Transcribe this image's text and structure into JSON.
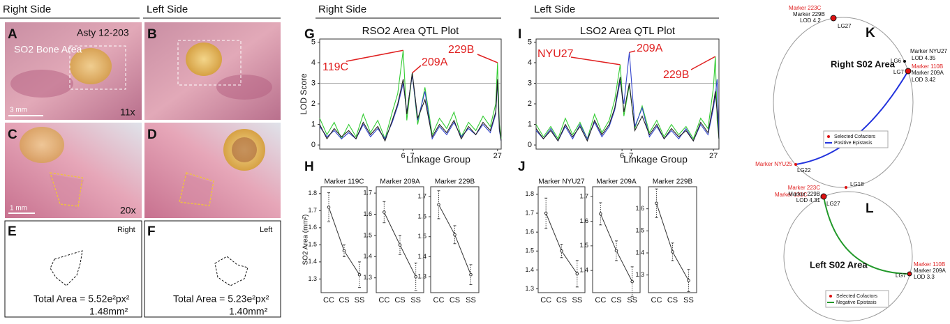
{
  "headers": {
    "photo_right": "Right Side",
    "photo_left": "Left Side",
    "qtl_right": "Right Side",
    "qtl_left": "Left Side"
  },
  "photos": {
    "A": {
      "label": "A",
      "strain": "Asty 12-203",
      "region": "SO2 Bone Area",
      "scale": "3 mm",
      "magnification": "11x"
    },
    "B": {
      "label": "B"
    },
    "C": {
      "label": "C",
      "scale": "1 mm",
      "magnification": "20x"
    },
    "D": {
      "label": "D"
    },
    "E": {
      "label": "E",
      "side": "Right",
      "total": "Total Area = 5.52e²px²",
      "mm": "1.48mm²"
    },
    "F": {
      "label": "F",
      "side": "Left",
      "total": "Total Area = 5.23e²px²",
      "mm": "1.40mm²"
    }
  },
  "chart_data": [
    {
      "type": "line",
      "panel": "G",
      "title": "RSO2 Area QTL Plot",
      "y_label": "LOD Score",
      "x_label": "Linkage Group",
      "xlim": [
        0,
        100
      ],
      "ylim": [
        -0.2,
        5.15
      ],
      "yticks": [
        0,
        1,
        2,
        3,
        4,
        5
      ],
      "xticks": [
        {
          "value": 46,
          "label": "6"
        },
        {
          "value": 51,
          "label": "7"
        },
        {
          "value": 98,
          "label": "27"
        }
      ],
      "threshold": 3,
      "x": [
        0,
        4,
        8,
        12,
        16,
        20,
        24,
        28,
        32,
        36,
        40,
        43,
        46,
        48,
        51,
        54,
        58,
        62,
        66,
        70,
        74,
        78,
        82,
        86,
        90,
        94,
        97,
        98,
        99,
        100
      ],
      "series": [
        {
          "color": "#33cc33",
          "values": [
            1.3,
            0.5,
            1.1,
            0.3,
            1.0,
            0.4,
            1.5,
            0.6,
            1.2,
            0.3,
            1.6,
            2.5,
            4.6,
            1.2,
            3.5,
            1.0,
            2.8,
            0.5,
            1.3,
            0.8,
            1.6,
            0.4,
            1.1,
            0.7,
            1.4,
            0.9,
            2.0,
            4.0,
            1.0,
            0.3
          ]
        },
        {
          "color": "#3344cc",
          "values": [
            0.9,
            0.4,
            0.7,
            0.3,
            0.6,
            0.3,
            1.0,
            0.4,
            0.8,
            0.3,
            1.1,
            1.9,
            3.0,
            1.6,
            3.4,
            1.2,
            2.6,
            0.3,
            0.9,
            0.5,
            1.1,
            0.4,
            0.8,
            0.5,
            1.0,
            0.6,
            1.5,
            3.1,
            0.7,
            0.2
          ]
        },
        {
          "color": "#222222",
          "values": [
            1.0,
            0.3,
            0.8,
            0.4,
            0.7,
            0.3,
            1.1,
            0.5,
            0.9,
            0.2,
            1.2,
            2.0,
            3.2,
            1.5,
            3.5,
            1.3,
            2.2,
            0.4,
            1.0,
            0.6,
            1.2,
            0.3,
            0.9,
            0.5,
            1.1,
            0.7,
            1.6,
            3.2,
            0.8,
            0.2
          ]
        }
      ],
      "annotations": [
        "119C",
        "209A",
        "229B"
      ]
    },
    {
      "type": "line",
      "panel": "I",
      "title": "LSO2 Area QTL Plot",
      "x_label": "Linkage Group",
      "xlim": [
        0,
        100
      ],
      "ylim": [
        -0.2,
        5.15
      ],
      "yticks": [
        0,
        1,
        2,
        3,
        4,
        5
      ],
      "xticks": [
        {
          "value": 47,
          "label": "6"
        },
        {
          "value": 52,
          "label": "7"
        },
        {
          "value": 97,
          "label": "27"
        }
      ],
      "threshold": 3,
      "x": [
        0,
        4,
        8,
        12,
        16,
        20,
        24,
        28,
        32,
        36,
        40,
        43,
        46,
        48,
        51,
        54,
        58,
        62,
        66,
        70,
        74,
        78,
        82,
        86,
        90,
        94,
        97,
        98,
        99,
        100
      ],
      "series": [
        {
          "color": "#33cc33",
          "values": [
            1.0,
            0.4,
            0.9,
            0.3,
            1.3,
            0.5,
            1.1,
            0.3,
            1.5,
            0.6,
            1.2,
            2.2,
            3.9,
            1.4,
            2.9,
            0.8,
            1.9,
            0.6,
            1.2,
            0.4,
            1.0,
            0.5,
            0.9,
            0.3,
            1.3,
            0.8,
            2.8,
            4.3,
            1.2,
            0.3
          ]
        },
        {
          "color": "#3344cc",
          "values": [
            0.7,
            0.3,
            0.8,
            0.2,
            0.9,
            0.3,
            1.0,
            0.3,
            1.1,
            0.4,
            0.9,
            1.7,
            3.1,
            2.0,
            4.5,
            0.9,
            1.8,
            0.4,
            0.9,
            0.3,
            0.7,
            0.3,
            0.8,
            0.2,
            1.0,
            0.5,
            1.8,
            2.4,
            3.2,
            0.3
          ]
        },
        {
          "color": "#222222",
          "values": [
            0.8,
            0.3,
            0.7,
            0.2,
            1.0,
            0.4,
            0.9,
            0.2,
            1.2,
            0.5,
            1.0,
            1.8,
            3.3,
            1.6,
            3.0,
            0.7,
            1.4,
            0.5,
            1.0,
            0.3,
            0.8,
            0.4,
            0.7,
            0.2,
            1.1,
            0.6,
            2.0,
            2.6,
            1.6,
            0.3
          ]
        }
      ],
      "annotations": [
        "NYU27",
        "209A",
        "229B"
      ]
    },
    {
      "type": "effect",
      "panel": "H",
      "title": "Marker 119C",
      "y_label": "SO2 Area (mm²)",
      "categories": [
        "CC",
        "CS",
        "SS"
      ],
      "values": [
        1.72,
        1.465,
        1.325
      ],
      "errors": [
        0.085,
        0.035,
        0.075
      ],
      "ylim": [
        1.22,
        1.84
      ],
      "yticks": [
        1.3,
        1.4,
        1.5,
        1.6,
        1.7,
        1.8
      ]
    },
    {
      "type": "effect",
      "title": "Marker 209A",
      "categories": [
        "CC",
        "CS",
        "SS"
      ],
      "values": [
        1.61,
        1.455,
        1.305
      ],
      "errors": [
        0.05,
        0.045,
        0.065
      ],
      "ylim": [
        1.23,
        1.73
      ],
      "yticks": [
        1.3,
        1.4,
        1.5,
        1.6,
        1.7
      ]
    },
    {
      "type": "effect",
      "title": "Marker 229B",
      "categories": [
        "CC",
        "CS",
        "SS"
      ],
      "values": [
        1.66,
        1.51,
        1.31
      ],
      "errors": [
        0.07,
        0.045,
        0.05
      ],
      "ylim": [
        1.22,
        1.75
      ],
      "yticks": [
        1.3,
        1.4,
        1.5,
        1.6,
        1.7
      ]
    },
    {
      "type": "effect",
      "panel": "J",
      "title": "Marker NYU27",
      "categories": [
        "CC",
        "CS",
        "SS"
      ],
      "values": [
        1.7,
        1.5,
        1.38
      ],
      "errors": [
        0.08,
        0.035,
        0.07
      ],
      "ylim": [
        1.28,
        1.84
      ],
      "yticks": [
        1.3,
        1.4,
        1.5,
        1.6,
        1.7,
        1.8
      ]
    },
    {
      "type": "effect",
      "title": "Marker 209A",
      "categories": [
        "CC",
        "CS",
        "SS"
      ],
      "values": [
        1.63,
        1.48,
        1.355
      ],
      "errors": [
        0.045,
        0.04,
        0.06
      ],
      "ylim": [
        1.31,
        1.74
      ],
      "yticks": [
        1.4,
        1.5,
        1.6,
        1.7
      ]
    },
    {
      "type": "effect",
      "title": "Marker 229B",
      "categories": [
        "CC",
        "CS",
        "SS"
      ],
      "values": [
        1.625,
        1.405,
        1.275
      ],
      "errors": [
        0.065,
        0.04,
        0.05
      ],
      "ylim": [
        1.22,
        1.7
      ],
      "yticks": [
        1.3,
        1.4,
        1.5,
        1.6
      ]
    }
  ],
  "epistasis": {
    "K": {
      "label": "K",
      "title": "Right S02 Area",
      "lg27": {
        "cofactor": "Marker 223C",
        "marker": "Marker 229B",
        "lod": "LOD 4.2",
        "lg": "LG27"
      },
      "lg6": {
        "marker": "Marker NYU27",
        "lod": "LOD 4.35",
        "lg": "LG6"
      },
      "lg7": {
        "cofactor": "Marker 110B",
        "marker": "Marker 209A",
        "lod": "LOD 3.42",
        "lg": "LG7"
      },
      "lg22": {
        "cofactor": "Marker NYU25",
        "lg": "LG22"
      },
      "lg18": {
        "cofactor": "Marker 131C",
        "lg": "LG18"
      },
      "legend": [
        "Selected Cofactors",
        "Positive Epistasis"
      ]
    },
    "L": {
      "label": "L",
      "title": "Left S02 Area",
      "lg27": {
        "cofactor": "Marker 223C",
        "marker": "Marker 229B",
        "lod": "LOD 4.31",
        "lg": "LG27"
      },
      "lg7": {
        "cofactor": "Marker 110B",
        "marker": "Marker 209A",
        "lod": "LOD 3.3",
        "lg": "LG7"
      },
      "legend": [
        "Selected Cofactors",
        "Negative Epistasis"
      ]
    }
  }
}
